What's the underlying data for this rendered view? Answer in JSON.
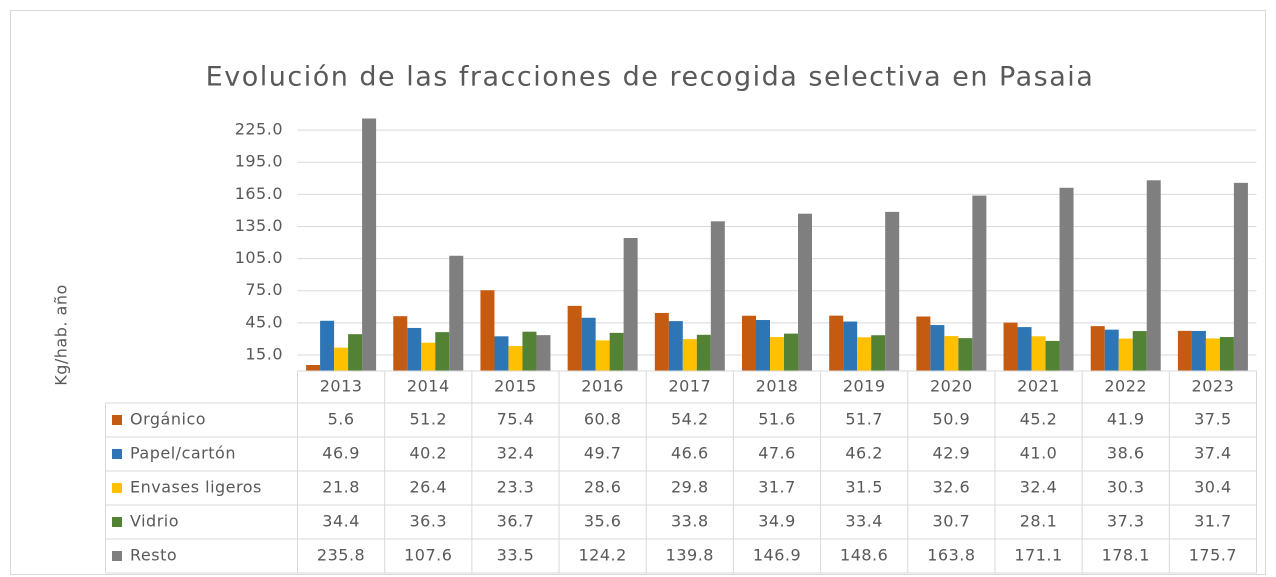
{
  "chart_data": {
    "type": "bar",
    "title": "Evolución de las fracciones de recogida selectiva en Pasaia",
    "y_label": "Kg/hab. año",
    "categories": [
      "2013",
      "2014",
      "2015",
      "2016",
      "2017",
      "2018",
      "2019",
      "2020",
      "2021",
      "2022",
      "2023"
    ],
    "series": [
      {
        "name": "Orgánico",
        "color": "#c55a11",
        "values": [
          5.6,
          51.2,
          75.4,
          60.8,
          54.2,
          51.6,
          51.7,
          50.9,
          45.2,
          41.9,
          37.5
        ],
        "value_labels": [
          "5.6",
          "51.2",
          "75.4",
          "60.8",
          "54.2",
          "51.6",
          "51.7",
          "50.9",
          "45.2",
          "41.9",
          "37.5"
        ]
      },
      {
        "name": "Papel/cartón",
        "color": "#2e75b6",
        "values": [
          46.9,
          40.2,
          32.4,
          49.7,
          46.6,
          47.6,
          46.2,
          42.9,
          41.0,
          38.6,
          37.4
        ],
        "value_labels": [
          "46.9",
          "40.2",
          "32.4",
          "49.7",
          "46.6",
          "47.6",
          "46.2",
          "42.9",
          "41.0",
          "38.6",
          "37.4"
        ]
      },
      {
        "name": "Envases ligeros",
        "color": "#ffc000",
        "values": [
          21.8,
          26.4,
          23.3,
          28.6,
          29.8,
          31.7,
          31.5,
          32.6,
          32.4,
          30.3,
          30.4
        ],
        "value_labels": [
          "21.8",
          "26.4",
          "23.3",
          "28.6",
          "29.8",
          "31.7",
          "31.5",
          "32.6",
          "32.4",
          "30.3",
          "30.4"
        ]
      },
      {
        "name": "Vidrio",
        "color": "#548235",
        "values": [
          34.4,
          36.3,
          36.7,
          35.6,
          33.8,
          34.9,
          33.4,
          30.7,
          28.1,
          37.3,
          31.7
        ],
        "value_labels": [
          "34.4",
          "36.3",
          "36.7",
          "35.6",
          "33.8",
          "34.9",
          "33.4",
          "30.7",
          "28.1",
          "37.3",
          "31.7"
        ]
      },
      {
        "name": "Resto",
        "color": "#7f7f7f",
        "values": [
          235.8,
          107.6,
          33.5,
          124.2,
          139.8,
          146.9,
          148.6,
          163.8,
          171.1,
          178.1,
          175.7
        ],
        "value_labels": [
          "235.8",
          "107.6",
          "33.5",
          "124.2",
          "139.8",
          "146.9",
          "148.6",
          "163.8",
          "171.1",
          "178.1",
          "175.7"
        ]
      }
    ],
    "ylim": [
      0,
      240
    ],
    "yticks": [
      {
        "value": 15,
        "label": "15.0"
      },
      {
        "value": 45,
        "label": "45.0"
      },
      {
        "value": 75,
        "label": "75.0"
      },
      {
        "value": 105,
        "label": "105.0"
      },
      {
        "value": 135,
        "label": "135.0"
      },
      {
        "value": 165,
        "label": "165.0"
      },
      {
        "value": 195,
        "label": "195.0"
      },
      {
        "value": 225,
        "label": "225.0"
      }
    ],
    "grid": true
  }
}
